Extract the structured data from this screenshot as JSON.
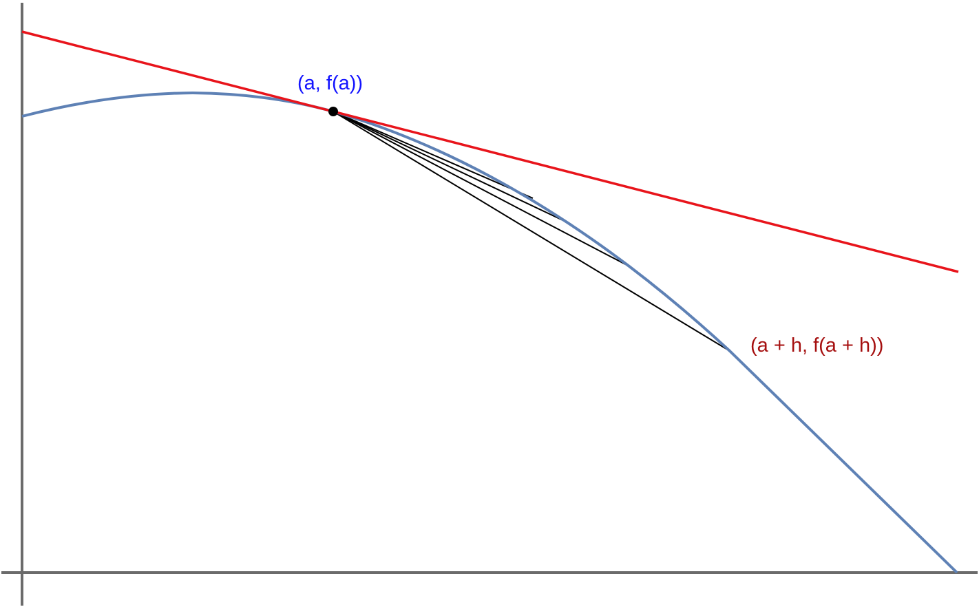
{
  "diagram": {
    "point_label": "(a, f(a))",
    "secant_end_label": "(a + h, f(a + h))",
    "colors": {
      "axes": "#6b6b6b",
      "curve": "#5e81b5",
      "tangent": "#e8141b",
      "secants": "#000000",
      "point": "#000000",
      "point_label": "#1414ff",
      "secant_end_label": "#a50f0f"
    }
  }
}
